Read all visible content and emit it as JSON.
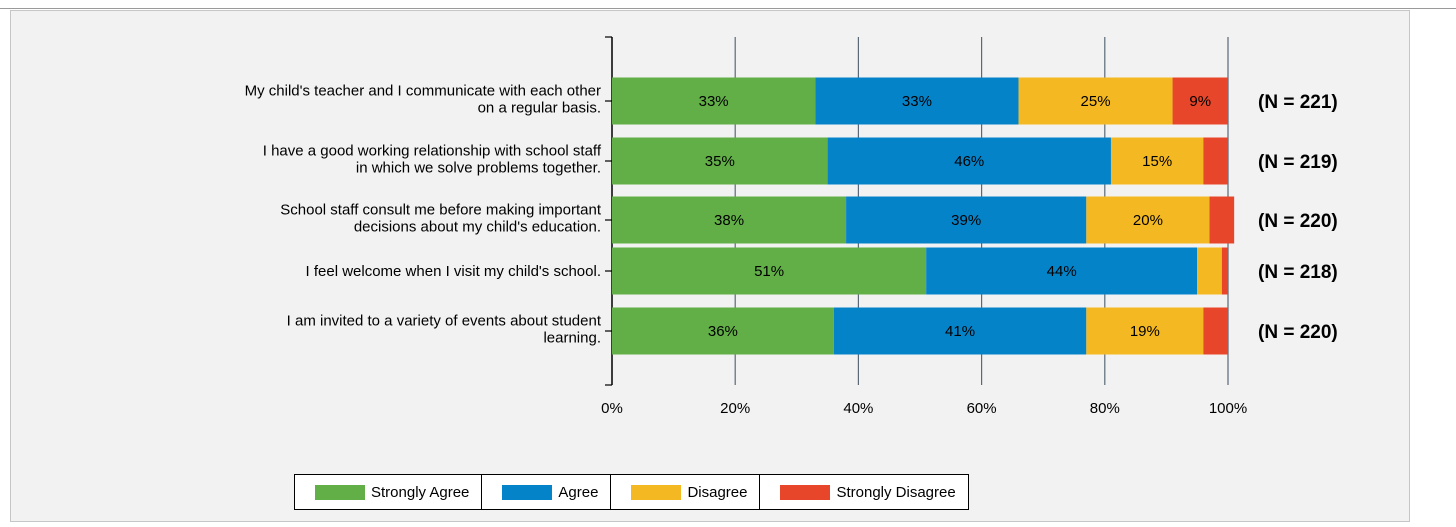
{
  "chart_data": {
    "type": "bar",
    "orientation": "horizontal",
    "stacked": true,
    "categories": [
      [
        "My child's teacher and I communicate with each other",
        "on a regular basis."
      ],
      [
        "I have a good working relationship with school staff",
        "in which we solve problems together."
      ],
      [
        "School staff consult me before making important",
        "decisions about my child's education."
      ],
      [
        "I feel welcome when I visit my child's school."
      ],
      [
        "I am invited to a variety of events about student",
        "learning."
      ]
    ],
    "series": [
      {
        "name": "Strongly Agree",
        "color": "#62ae47",
        "values": [
          33,
          35,
          38,
          51,
          36
        ],
        "labels": [
          "33%",
          "35%",
          "38%",
          "51%",
          "36%"
        ]
      },
      {
        "name": "Agree",
        "color": "#0583c9",
        "values": [
          33,
          46,
          39,
          44,
          41
        ],
        "labels": [
          "33%",
          "46%",
          "39%",
          "44%",
          "41%"
        ]
      },
      {
        "name": "Disagree",
        "color": "#f4b922",
        "values": [
          25,
          15,
          20,
          4,
          19
        ],
        "labels": [
          "25%",
          "15%",
          "20%",
          "",
          "19%"
        ]
      },
      {
        "name": "Strongly Disagree",
        "color": "#e8462a",
        "values": [
          9,
          4,
          4,
          1,
          4
        ],
        "labels": [
          "9%",
          "",
          "",
          "",
          ""
        ]
      }
    ],
    "n_labels": [
      "(N = 221)",
      "(N = 219)",
      "(N = 220)",
      "(N = 218)",
      "(N = 220)"
    ],
    "xlim": [
      0,
      100
    ],
    "xticks": [
      0,
      20,
      40,
      60,
      80,
      100
    ],
    "xtick_labels": [
      "0%",
      "20%",
      "40%",
      "60%",
      "80%",
      "100%"
    ],
    "grid": "vertical",
    "legend_position": "bottom-center"
  },
  "legend": [
    {
      "label": "Strongly Agree",
      "color": "#62ae47"
    },
    {
      "label": "Agree",
      "color": "#0583c9"
    },
    {
      "label": "Disagree",
      "color": "#f4b922"
    },
    {
      "label": "Strongly Disagree",
      "color": "#e8462a"
    }
  ]
}
